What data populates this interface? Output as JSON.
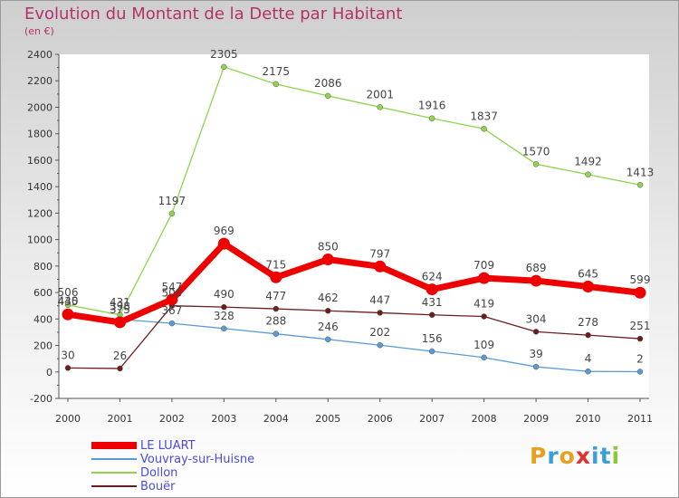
{
  "header": {
    "title": "Evolution du Montant de la Dette par Habitant",
    "subtitle": "(en €)"
  },
  "logo": {
    "text": "Proxiti",
    "letter_colors": [
      "#e8a020",
      "#3a9fd8",
      "#e8a020",
      "#e03030",
      "#3a9fd8",
      "#3a9fd8",
      "#8cc832"
    ]
  },
  "chart_data": {
    "type": "line",
    "title": "Evolution du Montant de la Dette par Habitant",
    "subtitle": "(en €)",
    "xlabel": "",
    "ylabel": "",
    "ylim": [
      -200,
      2400
    ],
    "yticks": [
      -200,
      0,
      200,
      400,
      600,
      800,
      1000,
      1200,
      1400,
      1600,
      1800,
      2000,
      2200,
      2400
    ],
    "categories": [
      "2000",
      "2001",
      "2002",
      "2003",
      "2004",
      "2005",
      "2006",
      "2007",
      "2008",
      "2009",
      "2010",
      "2011"
    ],
    "grid": false,
    "legend_position": "bottom-left",
    "series": [
      {
        "name": "LE LUART",
        "color": "#ee0000",
        "values": [
          435,
          375,
          547,
          969,
          715,
          850,
          797,
          624,
          709,
          689,
          645,
          599
        ],
        "labels": [
          "435",
          "375",
          "547",
          "969",
          "715",
          "850",
          "797",
          "624",
          "709",
          "689",
          "645",
          "599"
        ]
      },
      {
        "name": "Vouvray-sur-Huisne",
        "color": "#5b9bd5",
        "values": [
          440,
          398,
          367,
          328,
          288,
          246,
          202,
          156,
          109,
          39,
          4,
          2
        ],
        "labels": [
          "440",
          "398",
          "367",
          "328",
          "288",
          "246",
          "202",
          "156",
          "109",
          "39",
          "4",
          "2"
        ]
      },
      {
        "name": "Dollon",
        "color": "#8fd34f",
        "values": [
          506,
          431,
          1197,
          2305,
          2175,
          2086,
          2001,
          1916,
          1837,
          1570,
          1492,
          1413
        ],
        "labels": [
          "506",
          "431",
          "1197",
          "2305",
          "2175",
          "2086",
          "2001",
          "1916",
          "1837",
          "1570",
          "1492",
          "1413"
        ]
      },
      {
        "name": "Bouër",
        "color": "#6b1e1e",
        "values": [
          30,
          26,
          500,
          490,
          477,
          462,
          447,
          431,
          419,
          304,
          278,
          251
        ],
        "labels": [
          "30",
          "26",
          "500",
          "490",
          "477",
          "462",
          "447",
          "431",
          "419",
          "304",
          "278",
          "251"
        ]
      }
    ]
  }
}
